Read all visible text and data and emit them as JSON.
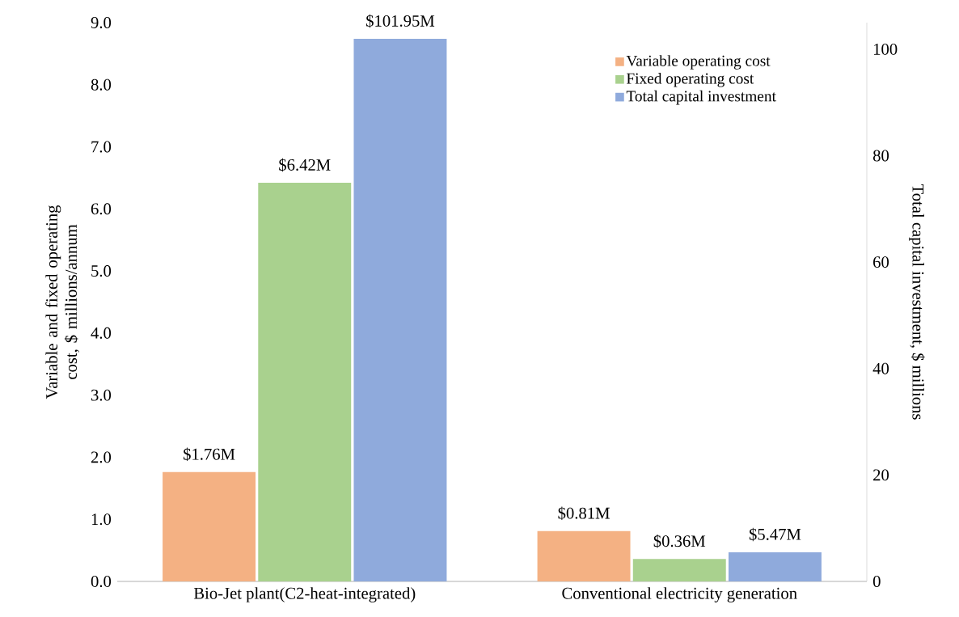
{
  "chart_data": {
    "type": "bar",
    "categories": [
      "Bio-Jet plant(C2-heat-integrated)",
      "Conventional electricity generation"
    ],
    "ylabel": "Variable and fixed operating cost, $ millions/annum",
    "y2label": "Total capital investment, $ millions",
    "ylim": [
      0,
      9
    ],
    "yticks": [
      {
        "value": 0,
        "label": "0.0"
      },
      {
        "value": 1,
        "label": "1.0"
      },
      {
        "value": 2,
        "label": "2.0"
      },
      {
        "value": 3,
        "label": "3.0"
      },
      {
        "value": 4,
        "label": "4.0"
      },
      {
        "value": 5,
        "label": "5.0"
      },
      {
        "value": 6,
        "label": "6.0"
      },
      {
        "value": 7,
        "label": "7.0"
      },
      {
        "value": 8,
        "label": "8.0"
      },
      {
        "value": 9,
        "label": "9.0"
      }
    ],
    "y2lim": [
      0,
      105
    ],
    "y2ticks": [
      0,
      20,
      40,
      60,
      80,
      100
    ],
    "legend": "top right",
    "grid": false,
    "series": [
      {
        "name": "Variable operating cost",
        "color": "#f4b183",
        "values": [
          1.76,
          0.81
        ],
        "value_labels": [
          "$1.76M",
          "$0.81M"
        ]
      },
      {
        "name": "Fixed operating cost",
        "color": "#a9d18e",
        "values": [
          6.42,
          0.36
        ],
        "value_labels": [
          "$6.42M",
          "$0.36M"
        ]
      },
      {
        "name": "Total capital investment",
        "color": "#8faadc",
        "axis": "y2",
        "values": [
          101.95,
          5.47
        ],
        "value_labels": [
          "$101.95M",
          "$5.47M"
        ]
      }
    ]
  }
}
